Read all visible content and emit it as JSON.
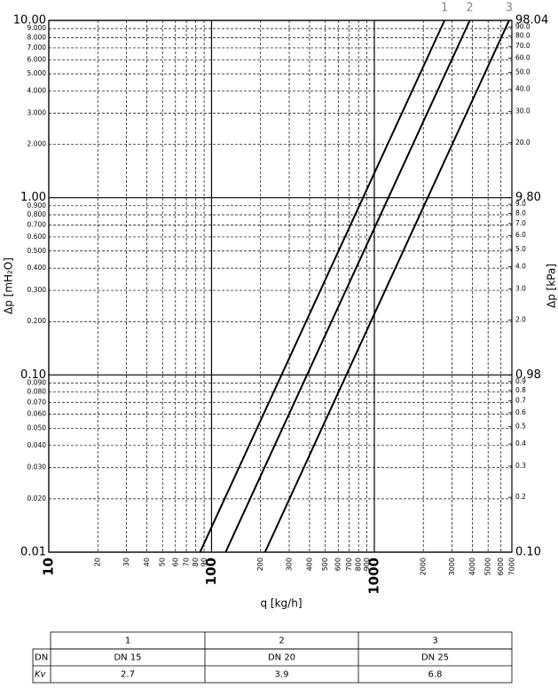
{
  "chart_data": {
    "type": "line",
    "xlabel": "q [kg/h]",
    "ylabel": "Δp [mH₂O]",
    "y2label": "Δp [kPa]",
    "log_x": true,
    "log_y": true,
    "grid": true,
    "xlim": [
      10,
      7000
    ],
    "xticks": [
      10,
      20,
      30,
      40,
      50,
      60,
      70,
      80,
      90,
      100,
      200,
      300,
      400,
      500,
      600,
      700,
      800,
      900,
      1000,
      2000,
      3000,
      4000,
      5000,
      6000,
      7000
    ],
    "ylim": [
      0.01,
      10
    ],
    "yticks": [
      {
        "value": 10,
        "label": "10.00"
      },
      {
        "value": 9,
        "label": "9.000"
      },
      {
        "value": 8,
        "label": "8.000"
      },
      {
        "value": 7,
        "label": "7.000"
      },
      {
        "value": 6,
        "label": "6.000"
      },
      {
        "value": 5,
        "label": "5.000"
      },
      {
        "value": 4,
        "label": "4.000"
      },
      {
        "value": 3,
        "label": "3.000"
      },
      {
        "value": 2,
        "label": "2.000"
      },
      {
        "value": 1,
        "label": "1.00"
      },
      {
        "value": 0.9,
        "label": "0.900"
      },
      {
        "value": 0.8,
        "label": "0.800"
      },
      {
        "value": 0.7,
        "label": "0.700"
      },
      {
        "value": 0.6,
        "label": "0.600"
      },
      {
        "value": 0.5,
        "label": "0.500"
      },
      {
        "value": 0.4,
        "label": "0.400"
      },
      {
        "value": 0.3,
        "label": "0.300"
      },
      {
        "value": 0.2,
        "label": "0.200"
      },
      {
        "value": 0.1,
        "label": "0.10"
      },
      {
        "value": 0.09,
        "label": "0.090"
      },
      {
        "value": 0.08,
        "label": "0.080"
      },
      {
        "value": 0.07,
        "label": "0.070"
      },
      {
        "value": 0.06,
        "label": "0.060"
      },
      {
        "value": 0.05,
        "label": "0.050"
      },
      {
        "value": 0.04,
        "label": "0.040"
      },
      {
        "value": 0.03,
        "label": "0.030"
      },
      {
        "value": 0.02,
        "label": "0.020"
      },
      {
        "value": 0.01,
        "label": "0.01"
      }
    ],
    "y2lim": [
      0.09804,
      98.04
    ],
    "y2ticks": [
      98.04,
      {
        "value": 90,
        "label": "90.0"
      },
      {
        "value": 80,
        "label": "80.0"
      },
      {
        "value": 70,
        "label": "70.0"
      },
      {
        "value": 60,
        "label": "60.0"
      },
      {
        "value": 50,
        "label": "50.0"
      },
      {
        "value": 40,
        "label": "40.0"
      },
      {
        "value": 30,
        "label": "30.0"
      },
      {
        "value": 20,
        "label": "20.0"
      },
      {
        "value": 9.8,
        "label": "9.80"
      },
      {
        "value": 9,
        "label": "9.0"
      },
      {
        "value": 8,
        "label": "8.0"
      },
      {
        "value": 7,
        "label": "7.0"
      },
      {
        "value": 6,
        "label": "6.0"
      },
      {
        "value": 5,
        "label": "5.0"
      },
      {
        "value": 4,
        "label": "4.0"
      },
      {
        "value": 3,
        "label": "3.0"
      },
      {
        "value": 2,
        "label": "2.0"
      },
      0.98,
      0.9,
      0.8,
      0.7,
      0.6,
      0.5,
      0.4,
      0.3,
      0.2,
      {
        "value": 0.098,
        "label": "0.10"
      }
    ],
    "series": [
      {
        "name": "1",
        "color": "#000000",
        "x": [
          85,
          2700
        ],
        "values": [
          0.01,
          10
        ]
      },
      {
        "name": "2",
        "color": "#000000",
        "x": [
          122,
          3860
        ],
        "values": [
          0.01,
          10
        ]
      },
      {
        "name": "3",
        "color": "#000000",
        "x": [
          213,
          6730
        ],
        "values": [
          0.01,
          10
        ]
      }
    ]
  },
  "table": {
    "columns": [
      "1",
      "2",
      "3"
    ],
    "rows": [
      {
        "label": "DN",
        "cells": [
          "DN 15",
          "DN 20",
          "DN 25"
        ]
      },
      {
        "label": "Kv",
        "cells": [
          2.7,
          3.9,
          6.8
        ]
      }
    ]
  }
}
